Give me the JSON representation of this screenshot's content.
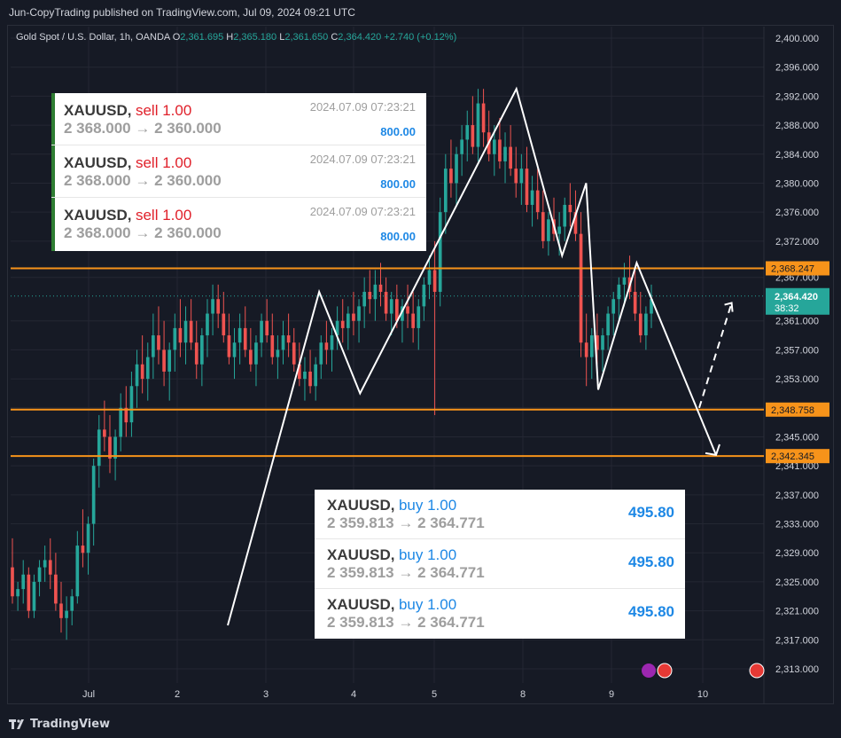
{
  "header": {
    "publish_line": "Jun-CopyTrading published on TradingView.com, Jul 09, 2024 09:21 UTC"
  },
  "ohlc": {
    "symbol": "Gold Spot / U.S. Dollar, 1h, OANDA",
    "o_label": "O",
    "o": "2,361.695",
    "h_label": "H",
    "h": "2,365.180",
    "l_label": "L",
    "l": "2,361.650",
    "c_label": "C",
    "c": "2,364.420",
    "change": "+2.740 (+0.12%)"
  },
  "footer": {
    "brand": "TradingView"
  },
  "sell_trades": [
    {
      "symbol": "XAUUSD,",
      "side": "sell 1.00",
      "timestamp": "2024.07.09 07:23:21",
      "prices": "2 368.000 → 2 360.000",
      "amount": "800.00"
    },
    {
      "symbol": "XAUUSD,",
      "side": "sell 1.00",
      "timestamp": "2024.07.09 07:23:21",
      "prices": "2 368.000 → 2 360.000",
      "amount": "800.00"
    },
    {
      "symbol": "XAUUSD,",
      "side": "sell 1.00",
      "timestamp": "2024.07.09 07:23:21",
      "prices": "2 368.000 → 2 360.000",
      "amount": "800.00"
    }
  ],
  "buy_trades": [
    {
      "symbol": "XAUUSD,",
      "side": "buy 1.00",
      "prices": "2 359.813 → 2 364.771",
      "amount": "495.80"
    },
    {
      "symbol": "XAUUSD,",
      "side": "buy 1.00",
      "prices": "2 359.813 → 2 364.771",
      "amount": "495.80"
    },
    {
      "symbol": "XAUUSD,",
      "side": "buy 1.00",
      "prices": "2 359.813 → 2 364.771",
      "amount": "495.80"
    }
  ],
  "colors": {
    "bg": "#161a25",
    "up": "#26a69a",
    "down": "#ef5350",
    "level": "#f7931a",
    "grid": "#242733",
    "axis_text": "#d1d4dc",
    "price_tag": "#26a69a"
  },
  "chart_data": {
    "type": "candlestick",
    "x_ticks": [
      "Jul",
      "2",
      "3",
      "4",
      "5",
      "8",
      "9",
      "10"
    ],
    "y_ticks": [
      "2,400.000",
      "2,396.000",
      "2,392.000",
      "2,388.000",
      "2,384.000",
      "2,380.000",
      "2,376.000",
      "2,372.000",
      "2,367.000",
      "2,361.000",
      "2,357.000",
      "2,353.000",
      "2,349.000",
      "2,345.000",
      "2,341.000",
      "2,337.000",
      "2,333.000",
      "2,329.000",
      "2,325.000",
      "2,321.000",
      "2,317.000",
      "2,313.000"
    ],
    "ylim": [
      2311.8,
      2401
    ],
    "levels": [
      {
        "value": 2368.247,
        "label": "2,368.247"
      },
      {
        "value": 2348.758,
        "label": "2,348.758"
      },
      {
        "value": 2342.345,
        "label": "2,342.345"
      }
    ],
    "last_price": {
      "value": 2364.42,
      "label": "2,364.420",
      "countdown": "38:32"
    },
    "zigzag": [
      {
        "i": 0,
        "p": 2319
      },
      {
        "i": 38,
        "p": 2365
      },
      {
        "i": 55,
        "p": 2351
      },
      {
        "i": 120,
        "p": 2393
      },
      {
        "i": 139,
        "p": 2370
      },
      {
        "i": 149,
        "p": 2380
      },
      {
        "i": 154,
        "p": 2351.5
      },
      {
        "i": 170,
        "p": 2369
      },
      {
        "i": 203,
        "p": 2342.5
      }
    ],
    "projection": [
      {
        "i": 196,
        "p": 2349
      },
      {
        "i": 208,
        "p": 2362
      }
    ],
    "candles": [
      [
        2327,
        2331,
        2322,
        2323
      ],
      [
        2323,
        2325,
        2321,
        2324
      ],
      [
        2324,
        2328,
        2322,
        2326
      ],
      [
        2326,
        2327,
        2320,
        2321
      ],
      [
        2321,
        2326,
        2320,
        2325
      ],
      [
        2325,
        2328,
        2323,
        2327
      ],
      [
        2327,
        2330,
        2325,
        2328
      ],
      [
        2328,
        2331,
        2324,
        2326
      ],
      [
        2326,
        2329,
        2321,
        2322
      ],
      [
        2322,
        2325,
        2318,
        2320
      ],
      [
        2320,
        2323,
        2317,
        2321
      ],
      [
        2321,
        2324,
        2319,
        2323
      ],
      [
        2323,
        2332,
        2322,
        2330
      ],
      [
        2330,
        2335,
        2327,
        2329
      ],
      [
        2329,
        2334,
        2326,
        2333
      ],
      [
        2333,
        2342,
        2330,
        2341
      ],
      [
        2341,
        2348,
        2338,
        2346
      ],
      [
        2346,
        2350,
        2343,
        2345
      ],
      [
        2345,
        2348,
        2340,
        2342
      ],
      [
        2342,
        2346,
        2339,
        2345
      ],
      [
        2345,
        2351,
        2343,
        2349
      ],
      [
        2349,
        2352,
        2345,
        2347
      ],
      [
        2347,
        2354,
        2345,
        2352
      ],
      [
        2352,
        2357,
        2349,
        2355
      ],
      [
        2355,
        2359,
        2351,
        2353
      ],
      [
        2353,
        2358,
        2350,
        2356
      ],
      [
        2356,
        2362,
        2353,
        2359
      ],
      [
        2359,
        2363,
        2355,
        2357
      ],
      [
        2357,
        2361,
        2352,
        2354
      ],
      [
        2354,
        2358,
        2350,
        2357
      ],
      [
        2357,
        2362,
        2354,
        2360
      ],
      [
        2360,
        2364,
        2356,
        2358
      ],
      [
        2358,
        2363,
        2355,
        2361
      ],
      [
        2361,
        2364,
        2357,
        2358
      ],
      [
        2358,
        2361,
        2353,
        2355
      ],
      [
        2355,
        2360,
        2352,
        2359
      ],
      [
        2359,
        2364,
        2356,
        2362
      ],
      [
        2362,
        2366,
        2359,
        2364
      ],
      [
        2364,
        2366,
        2360,
        2362
      ],
      [
        2362,
        2365,
        2358,
        2359
      ],
      [
        2359,
        2362,
        2355,
        2356
      ],
      [
        2356,
        2360,
        2353,
        2358
      ],
      [
        2358,
        2362,
        2355,
        2360
      ],
      [
        2360,
        2363,
        2356,
        2357
      ],
      [
        2357,
        2360,
        2354,
        2355
      ],
      [
        2355,
        2359,
        2352,
        2358
      ],
      [
        2358,
        2362,
        2356,
        2361
      ],
      [
        2361,
        2364,
        2358,
        2359
      ],
      [
        2359,
        2362,
        2355,
        2356
      ],
      [
        2356,
        2359,
        2353,
        2357
      ],
      [
        2357,
        2361,
        2355,
        2359
      ],
      [
        2359,
        2362,
        2356,
        2358
      ],
      [
        2358,
        2360,
        2354,
        2355
      ],
      [
        2355,
        2358,
        2352,
        2353
      ],
      [
        2353,
        2356,
        2350,
        2354
      ],
      [
        2354,
        2357,
        2351,
        2352
      ],
      [
        2352,
        2356,
        2350,
        2355
      ],
      [
        2355,
        2359,
        2353,
        2358
      ],
      [
        2358,
        2361,
        2355,
        2357
      ],
      [
        2357,
        2360,
        2354,
        2359
      ],
      [
        2359,
        2363,
        2357,
        2361
      ],
      [
        2361,
        2364,
        2358,
        2360
      ],
      [
        2360,
        2363,
        2357,
        2362
      ],
      [
        2362,
        2365,
        2359,
        2361
      ],
      [
        2361,
        2364,
        2358,
        2363
      ],
      [
        2363,
        2367,
        2360,
        2365
      ],
      [
        2365,
        2368,
        2362,
        2364
      ],
      [
        2364,
        2368,
        2361,
        2366
      ],
      [
        2366,
        2369,
        2363,
        2365
      ],
      [
        2365,
        2367,
        2361,
        2362
      ],
      [
        2362,
        2365,
        2359,
        2364
      ],
      [
        2364,
        2366,
        2360,
        2361
      ],
      [
        2361,
        2364,
        2358,
        2363
      ],
      [
        2363,
        2366,
        2360,
        2362
      ],
      [
        2362,
        2365,
        2358,
        2360
      ],
      [
        2360,
        2364,
        2357,
        2363
      ],
      [
        2363,
        2367,
        2361,
        2366
      ],
      [
        2366,
        2370,
        2364,
        2368
      ],
      [
        2368,
        2372,
        2348,
        2365
      ],
      [
        2365,
        2378,
        2363,
        2376
      ],
      [
        2376,
        2384,
        2373,
        2382
      ],
      [
        2382,
        2386,
        2378,
        2380
      ],
      [
        2380,
        2385,
        2377,
        2384
      ],
      [
        2384,
        2388,
        2381,
        2386
      ],
      [
        2386,
        2390,
        2383,
        2388
      ],
      [
        2388,
        2392,
        2384,
        2385
      ],
      [
        2385,
        2393,
        2383,
        2391
      ],
      [
        2391,
        2393,
        2385,
        2387
      ],
      [
        2387,
        2390,
        2383,
        2384
      ],
      [
        2384,
        2388,
        2381,
        2386
      ],
      [
        2386,
        2389,
        2382,
        2383
      ],
      [
        2383,
        2387,
        2380,
        2385
      ],
      [
        2385,
        2388,
        2381,
        2382
      ],
      [
        2382,
        2385,
        2378,
        2380
      ],
      [
        2380,
        2384,
        2377,
        2382
      ],
      [
        2382,
        2385,
        2376,
        2377
      ],
      [
        2377,
        2381,
        2374,
        2379
      ],
      [
        2379,
        2382,
        2375,
        2376
      ],
      [
        2376,
        2379,
        2371,
        2372
      ],
      [
        2372,
        2376,
        2370,
        2375
      ],
      [
        2375,
        2378,
        2372,
        2373
      ],
      [
        2373,
        2376,
        2370,
        2374
      ],
      [
        2374,
        2378,
        2372,
        2377
      ],
      [
        2377,
        2380,
        2374,
        2376
      ],
      [
        2376,
        2379,
        2372,
        2373
      ],
      [
        2373,
        2376,
        2356,
        2358
      ],
      [
        2358,
        2362,
        2352,
        2356
      ],
      [
        2356,
        2360,
        2353,
        2359
      ],
      [
        2359,
        2362,
        2355,
        2357
      ],
      [
        2357,
        2360,
        2354,
        2359
      ],
      [
        2359,
        2363,
        2357,
        2362
      ],
      [
        2362,
        2365,
        2359,
        2364
      ],
      [
        2364,
        2367,
        2361,
        2366
      ],
      [
        2366,
        2369,
        2363,
        2367
      ],
      [
        2367,
        2370,
        2364,
        2365
      ],
      [
        2365,
        2368,
        2361,
        2362
      ],
      [
        2362,
        2365,
        2358,
        2359
      ],
      [
        2359,
        2363,
        2357,
        2362
      ],
      [
        2362,
        2366,
        2360,
        2364
      ]
    ]
  }
}
